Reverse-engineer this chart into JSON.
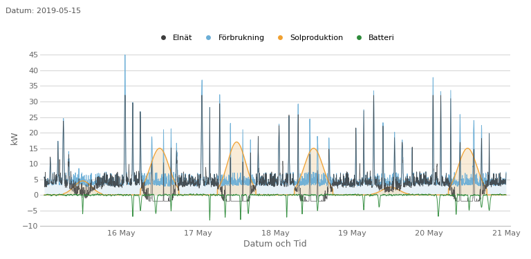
{
  "title_left": "Datum: 2019-05-15",
  "xlabel": "Datum och Tid",
  "ylabel": "kW",
  "ylim": [
    -10,
    47
  ],
  "yticks": [
    -10,
    -5,
    0,
    5,
    10,
    15,
    20,
    25,
    30,
    35,
    40,
    45
  ],
  "legend_labels": [
    "Elnät",
    "Förbrukning",
    "Solproduktion",
    "Batteri"
  ],
  "colors": {
    "elnat": "#3d3d3d",
    "forbrukning": "#6baed6",
    "solproduktion": "#f0a030",
    "batteri": "#2e8b3a"
  },
  "fill_colors": {
    "forbrukning": "#b8d4ea",
    "solproduktion": "#f5ddb8"
  },
  "background": "#ffffff",
  "grid_color": "#cccccc",
  "n_points": 2880
}
